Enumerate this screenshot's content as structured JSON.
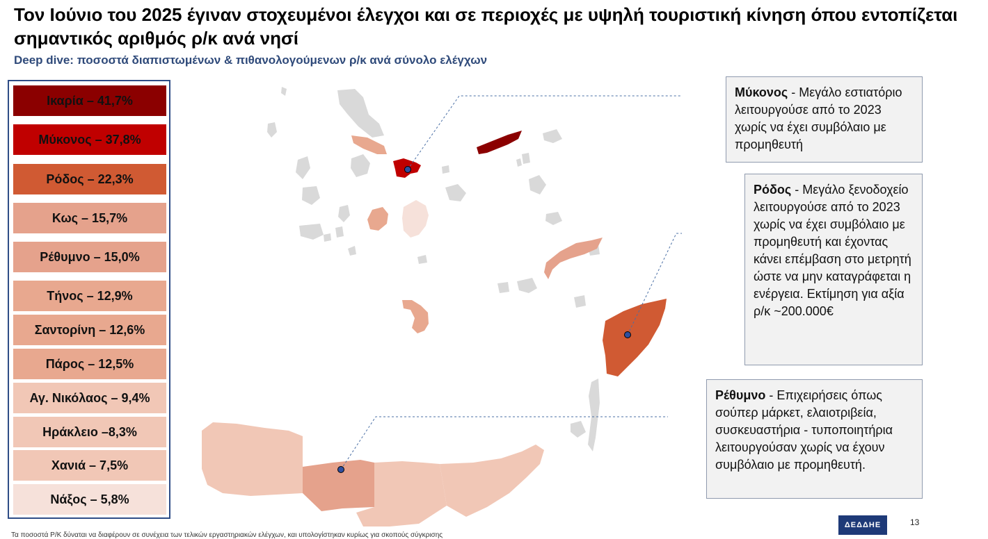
{
  "title": "Τον Ιούνιο του 2025 έγιναν στοχευμένοι έλεγχοι και σε περιοχές με υψηλή τουριστική κίνηση όπου εντοπίζεται σημαντικός αριθμός ρ/κ ανά νησί",
  "subtitle": "Deep dive: ποσοστά διαπιστωμένων & πιθανολογούμενων ρ/κ ανά σύνολο ελέγχων",
  "legend": {
    "items": [
      {
        "label": "Ικαρία – 41,7%",
        "color": "#8b0000",
        "text_color": "#111111"
      },
      {
        "label": "Μύκονος – 37,8%",
        "color": "#c00000",
        "text_color": "#111111"
      },
      {
        "label": "Ρόδος – 22,3%",
        "color": "#d05a33",
        "text_color": "#111111"
      },
      {
        "label": "Κως – 15,7%",
        "color": "#e5a28c",
        "text_color": "#111111"
      },
      {
        "label": "Ρέθυμνο – 15,0%",
        "color": "#e5a28c",
        "text_color": "#111111"
      },
      {
        "label": "Τήνος – 12,9%",
        "color": "#e8a88f",
        "text_color": "#111111"
      },
      {
        "label": "Σαντορίνη – 12,6%",
        "color": "#e8a88f",
        "text_color": "#111111"
      },
      {
        "label": "Πάρος – 12,5%",
        "color": "#e8a88f",
        "text_color": "#111111"
      },
      {
        "label": "Αγ. Νικόλαος – 9,4%",
        "color": "#f1c7b6",
        "text_color": "#111111"
      },
      {
        "label": "Ηράκλειο –8,3%",
        "color": "#f1c7b6",
        "text_color": "#111111"
      },
      {
        "label": "Χανιά – 7,5%",
        "color": "#f1c7b6",
        "text_color": "#111111"
      },
      {
        "label": "Νάξος – 5,8%",
        "color": "#f6e1da",
        "text_color": "#111111"
      }
    ]
  },
  "callouts": {
    "mykonos": {
      "name": "Μύκονος",
      "text": " - Μεγάλο εστιατόριο λειτουργούσε από το 2023 χωρίς να έχει συμβόλαιο με προμηθευτή"
    },
    "rhodes": {
      "name": "Ρόδος",
      "text": " - Μεγάλο ξενοδοχείο λειτουργούσε από το 2023 χωρίς να έχει συμβόλαιο με προμηθευτή και έχοντας κάνει επέμβαση στο μετρητή ώστε να μην καταγράφεται η ενέργεια. Εκτίμηση για αξία ρ/κ ~200.000€"
    },
    "rethymno": {
      "name": "Ρέθυμνο",
      "text": " - Επιχειρήσεις όπως σούπερ μάρκετ, ελαιοτριβεία, συσκευαστήρια - τυποποιητήρια λειτουργούσαν χωρίς να έχουν συμβόλαιο με προμηθευτή."
    }
  },
  "map_colors": {
    "gray": "#d9d9d9",
    "ikaria": "#8b0000",
    "mykonos": "#c00000",
    "rhodes": "#d05a33",
    "kos": "#e5a28c",
    "rethymno": "#e5a28c",
    "tinos": "#e8a88f",
    "santorini": "#e8a88f",
    "paros": "#e8a88f",
    "agnikolaos": "#f1c7b6",
    "heraklion": "#f1c7b6",
    "chania": "#f1c7b6",
    "naxos": "#f6e1da",
    "marker": "#2f4f9e",
    "leader_line": "#4a6fa5"
  },
  "logo": {
    "text": "ΔΕΔΔΗΕ"
  },
  "page_number": "13",
  "footnote": "Τα ποσοστά Ρ/Κ δύναται να διαφέρουν σε συνέχεια των τελικών εργαστηριακών ελέγχων, και υπολογίστηκαν κυρίως για σκοπούς σύγκρισης"
}
